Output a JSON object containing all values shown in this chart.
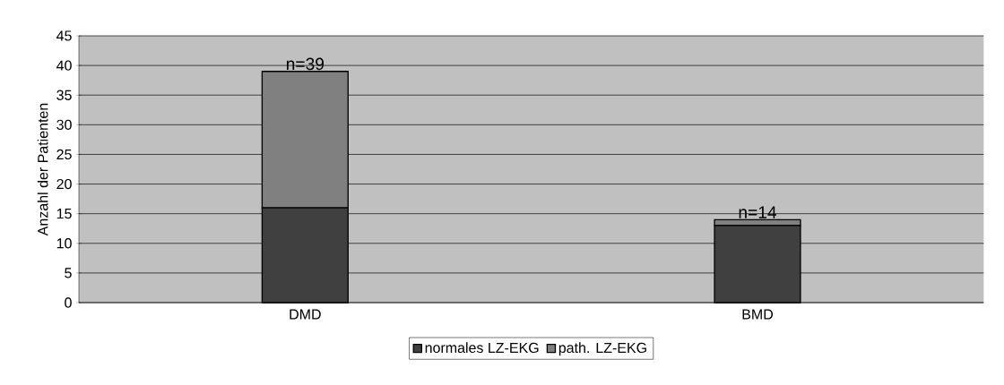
{
  "chart_data": {
    "type": "bar",
    "stacked": true,
    "ylabel": "Anzahl der Patienten",
    "categories": [
      "DMD",
      "BMD"
    ],
    "series": [
      {
        "name": "normales LZ-EKG",
        "color": "#404040",
        "values": [
          16,
          13
        ]
      },
      {
        "name": "path. LZ-EKG",
        "color": "#808080",
        "values": [
          23,
          1
        ]
      }
    ],
    "ylim": [
      0,
      45
    ],
    "yticks": [
      0,
      5,
      10,
      15,
      20,
      25,
      30,
      35,
      40,
      45
    ],
    "grid": "y",
    "legend": "bottom",
    "annotations": [
      {
        "text": "n=39",
        "x": "DMD",
        "y": 39
      },
      {
        "text": "n=14",
        "x": "BMD",
        "y": 14
      }
    ]
  }
}
